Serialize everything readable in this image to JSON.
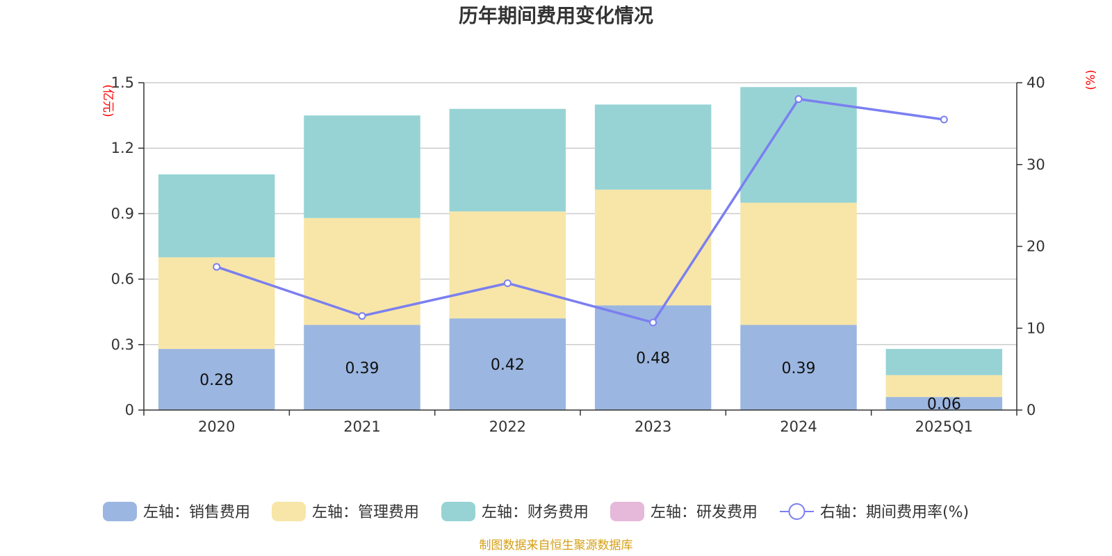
{
  "chart_data": {
    "type": "bar",
    "title": "历年期间费用变化情况",
    "categories": [
      "2020",
      "2021",
      "2022",
      "2023",
      "2024",
      "2025Q1"
    ],
    "left_axis": {
      "unit": "(亿元)",
      "ylim": [
        0,
        1.5
      ],
      "ticks": [
        "0",
        "0.3",
        "0.6",
        "0.9",
        "1.2",
        "1.5"
      ],
      "tick_values": [
        0,
        0.3,
        0.6,
        0.9,
        1.2,
        1.5
      ]
    },
    "right_axis": {
      "unit": "(%)",
      "ylim": [
        0,
        40
      ],
      "ticks": [
        "0",
        "10",
        "20",
        "30",
        "40"
      ],
      "tick_values": [
        0,
        10,
        20,
        30,
        40
      ]
    },
    "series": [
      {
        "name": "左轴：销售费用",
        "axis": "left",
        "kind": "bar",
        "color": "#9bb6e0",
        "values": [
          0.28,
          0.39,
          0.42,
          0.48,
          0.39,
          0.06
        ],
        "labels": [
          "0.28",
          "0.39",
          "0.42",
          "0.48",
          "0.39",
          "0.06"
        ]
      },
      {
        "name": "左轴：管理费用",
        "axis": "left",
        "kind": "bar",
        "color": "#f7e6a7",
        "values": [
          0.42,
          0.49,
          0.49,
          0.53,
          0.56,
          0.1
        ]
      },
      {
        "name": "左轴：财务费用",
        "axis": "left",
        "kind": "bar",
        "color": "#97d3d4",
        "values": [
          0.38,
          0.47,
          0.47,
          0.39,
          0.53,
          0.12
        ]
      },
      {
        "name": "左轴：研发费用",
        "axis": "left",
        "kind": "bar",
        "color": "#e6b8d9",
        "values": [
          0,
          0,
          0,
          0,
          0,
          0
        ]
      },
      {
        "name": "右轴：期间费用率(%)",
        "axis": "right",
        "kind": "line",
        "color": "#7b7ff0",
        "values": [
          17.5,
          11.5,
          15.5,
          10.7,
          38.0,
          35.5
        ]
      }
    ],
    "source": "制图数据来自恒生聚源数据库"
  }
}
